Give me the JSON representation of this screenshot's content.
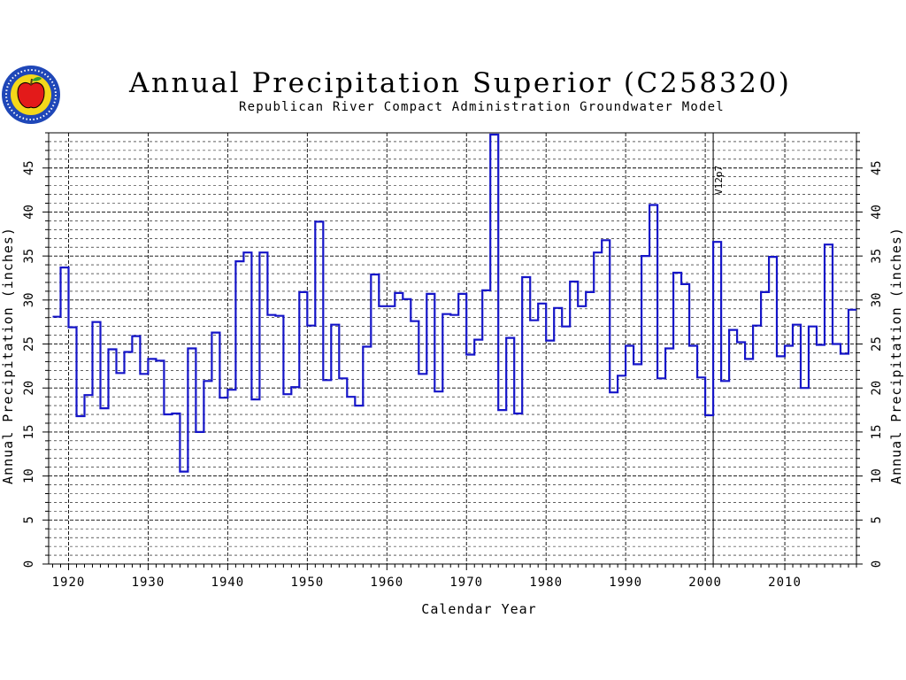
{
  "header": {
    "title": "Annual Precipitation Superior (C258320)",
    "subtitle": "Republican River Compact Administration Groundwater Model"
  },
  "logo": {
    "name": "apple-seal-logo"
  },
  "colors": {
    "series": "#1515c8",
    "grid": "#000000",
    "logo_ring": "#1f47b8",
    "logo_fill": "#f4d81a",
    "apple": "#e31a1a",
    "leaf": "#2f9e2f"
  },
  "chart_data": {
    "type": "line",
    "step": true,
    "xlabel": "Calendar Year",
    "ylabel": "Annual Precipitation (inches)",
    "xlim": [
      1917.5,
      2019
    ],
    "ylim": [
      0,
      49
    ],
    "xticks": [
      1920,
      1930,
      1940,
      1950,
      1960,
      1970,
      1980,
      1990,
      2000,
      2010
    ],
    "yticks": [
      0,
      5,
      10,
      15,
      20,
      25,
      30,
      35,
      40,
      45
    ],
    "grid": true,
    "annotation": {
      "x": 2001,
      "text": "V12p7"
    },
    "series": [
      {
        "x": [
          1918,
          1919,
          1920,
          1921,
          1922,
          1923,
          1924,
          1925,
          1926,
          1927,
          1928,
          1929,
          1930,
          1931,
          1932,
          1933,
          1934,
          1935,
          1936,
          1937,
          1938,
          1939,
          1940,
          1941,
          1942,
          1943,
          1944,
          1945,
          1946,
          1947,
          1948,
          1949,
          1950,
          1951,
          1952,
          1953,
          1954,
          1955,
          1956,
          1957,
          1958,
          1959,
          1960,
          1961,
          1962,
          1963,
          1964,
          1965,
          1966,
          1967,
          1968,
          1969,
          1970,
          1971,
          1972,
          1973,
          1974,
          1975,
          1976,
          1977,
          1978,
          1979,
          1980,
          1981,
          1982,
          1983,
          1984,
          1985,
          1986,
          1987,
          1988,
          1989,
          1990,
          1991,
          1992,
          1993,
          1994,
          1995,
          1996,
          1997,
          1998,
          1999,
          2000,
          2001,
          2002,
          2003,
          2004,
          2005,
          2006,
          2007,
          2008,
          2009,
          2010,
          2011,
          2012,
          2013,
          2014,
          2015,
          2016,
          2017,
          2018
        ],
        "values": [
          28.1,
          33.7,
          26.9,
          16.8,
          19.2,
          27.5,
          17.7,
          24.4,
          21.7,
          24.1,
          25.9,
          21.6,
          23.3,
          23.1,
          17.0,
          17.1,
          10.5,
          24.5,
          15.0,
          20.8,
          26.3,
          18.9,
          19.8,
          34.4,
          35.4,
          18.7,
          35.4,
          28.3,
          28.2,
          19.3,
          20.1,
          30.9,
          27.1,
          38.9,
          20.9,
          27.2,
          21.1,
          19.0,
          18.0,
          24.7,
          32.9,
          29.3,
          29.3,
          30.8,
          30.1,
          27.6,
          21.6,
          30.7,
          19.6,
          28.4,
          28.3,
          30.7,
          23.8,
          25.5,
          31.1,
          48.8,
          17.5,
          25.7,
          17.1,
          32.6,
          27.7,
          29.6,
          25.4,
          29.1,
          27.0,
          32.1,
          29.3,
          30.9,
          35.4,
          36.8,
          19.5,
          21.4,
          24.8,
          22.7,
          35.0,
          40.8,
          21.1,
          24.5,
          33.1,
          31.8,
          24.8,
          21.2,
          16.9,
          36.6,
          20.8,
          26.6,
          25.2,
          23.3,
          27.1,
          30.9,
          34.9,
          23.6,
          24.8,
          27.2,
          20.0,
          27.0,
          24.9,
          36.3,
          25.0,
          23.9,
          28.9
        ]
      }
    ]
  }
}
